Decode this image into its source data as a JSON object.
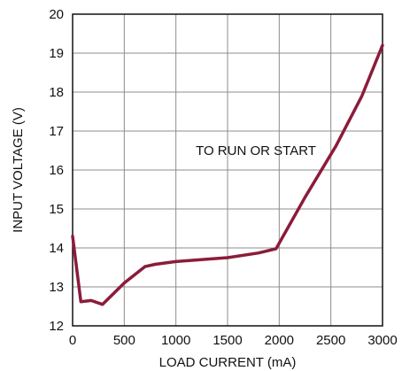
{
  "chart_data": {
    "type": "line",
    "title": "",
    "xlabel": "LOAD CURRENT (mA)",
    "ylabel": "INPUT VOLTAGE (V)",
    "xlim": [
      0,
      3000
    ],
    "ylim": [
      12,
      20
    ],
    "x_ticks": [
      0,
      500,
      1000,
      1500,
      2000,
      2500,
      3000
    ],
    "y_ticks": [
      12,
      13,
      14,
      15,
      16,
      17,
      18,
      19,
      20
    ],
    "grid": true,
    "annotation": "TO RUN OR START",
    "series": [
      {
        "color": "#8b1c3a",
        "x": [
          0,
          80,
          180,
          290,
          500,
          700,
          800,
          1000,
          1500,
          1800,
          1970,
          2250,
          2550,
          2800,
          3000
        ],
        "y": [
          14.3,
          12.62,
          12.65,
          12.55,
          13.1,
          13.52,
          13.58,
          13.65,
          13.75,
          13.87,
          13.98,
          15.3,
          16.62,
          17.9,
          19.2
        ]
      }
    ]
  }
}
